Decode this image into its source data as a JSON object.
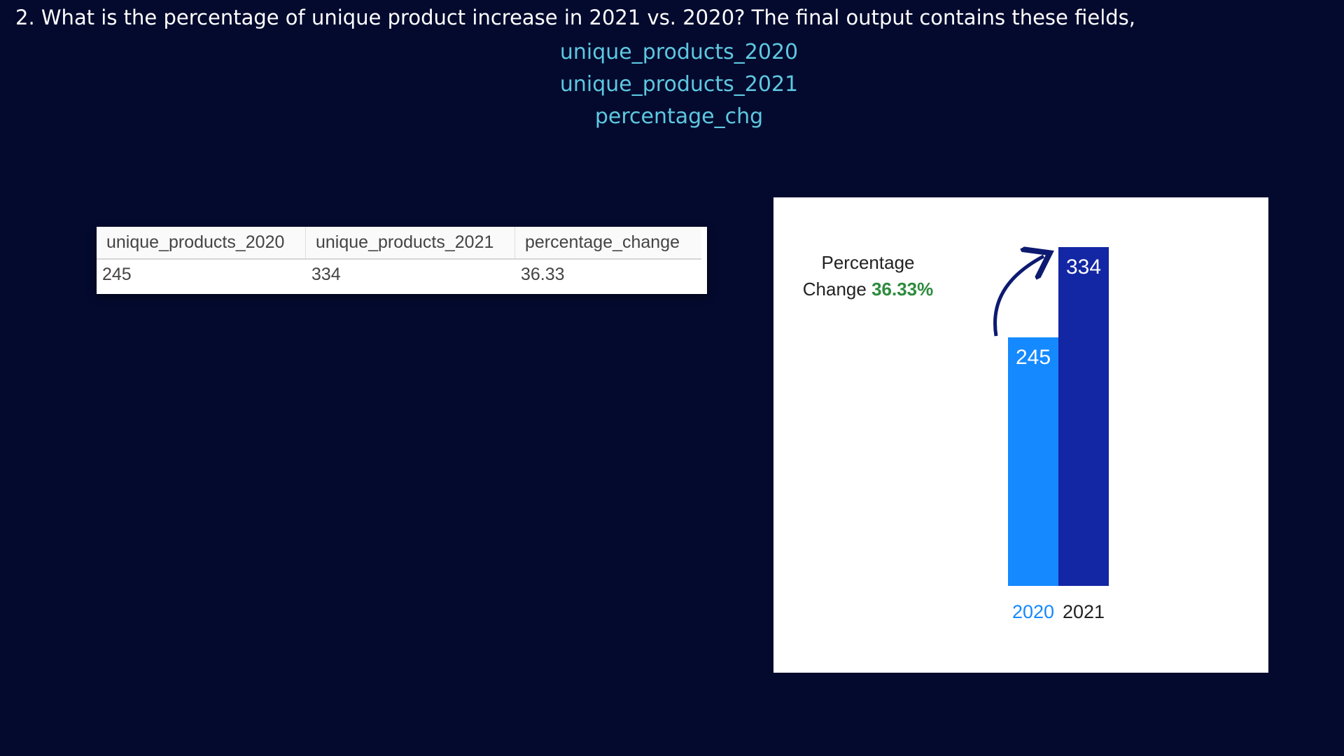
{
  "question": "2. What is the percentage of unique product increase in 2021 vs. 2020? The final output contains these fields,",
  "fields": [
    "unique_products_2020",
    "unique_products_2021",
    "percentage_chg"
  ],
  "result_table": {
    "columns": [
      "unique_products_2020",
      "unique_products_2021",
      "percentage_change"
    ],
    "rows": [
      [
        "245",
        "334",
        "36.33"
      ]
    ]
  },
  "chart_note": {
    "line1": "Percentage",
    "line2": "Change",
    "value": "36.33%"
  },
  "chart_data": {
    "type": "bar",
    "categories": [
      "2020",
      "2021"
    ],
    "values": [
      245,
      334
    ],
    "data_labels": [
      "245",
      "334"
    ],
    "ylim": [
      0,
      334
    ],
    "colors": [
      "#1589ff",
      "#1326a4"
    ],
    "category_label_colors": [
      "#1589ff",
      "#222222"
    ],
    "title": "",
    "xlabel": "",
    "ylabel": "",
    "grid": false,
    "arrow_color": "#0d1a70"
  }
}
